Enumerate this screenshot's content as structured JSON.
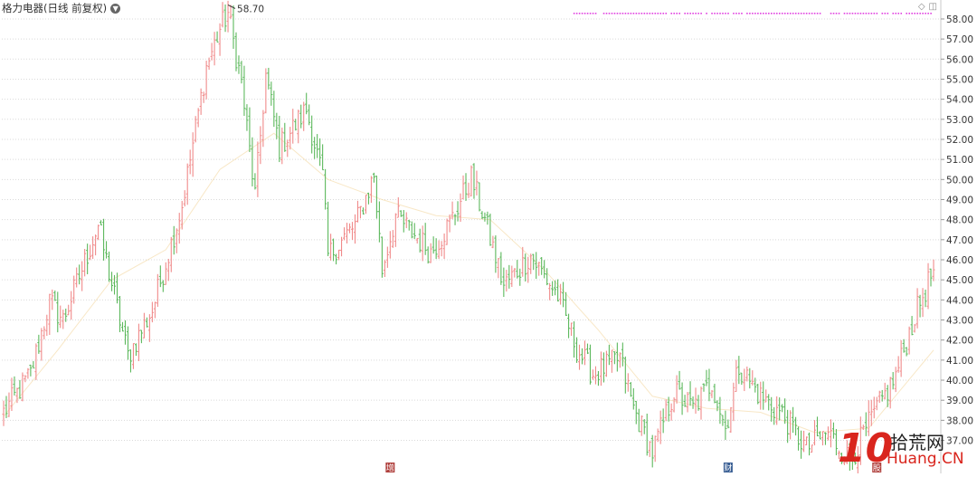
{
  "header": {
    "title": "格力电器(日线 前复权)",
    "dropdown_icon": "chevron-down-icon"
  },
  "colors": {
    "up": "#f08a8a",
    "down": "#5cb85c",
    "grid": "#d9d9d9",
    "indicator_dots": "#e040e0",
    "event_red": "#b0413e",
    "event_blue": "#3a5f94"
  },
  "chart_data": {
    "type": "ohlc",
    "ylim": [
      35.4,
      58.9
    ],
    "y_ticks": [
      "37.00",
      "38.00",
      "39.00",
      "40.00",
      "41.00",
      "42.00",
      "43.00",
      "44.00",
      "45.00",
      "46.00",
      "47.00",
      "48.00",
      "49.00",
      "50.00",
      "51.00",
      "52.00",
      "53.00",
      "54.00",
      "55.00",
      "56.00",
      "57.00",
      "58.00"
    ],
    "y_tick_values": [
      37,
      38,
      39,
      40,
      41,
      42,
      43,
      44,
      45,
      46,
      47,
      48,
      49,
      50,
      51,
      52,
      53,
      54,
      55,
      56,
      57,
      58
    ],
    "grid": true,
    "max_label": "58.70",
    "events": [
      {
        "label": "增",
        "bar": 143,
        "color": "red"
      },
      {
        "label": "财",
        "bar": 268,
        "color": "blue"
      },
      {
        "label": "股",
        "bar": 323,
        "color": "red"
      }
    ],
    "anchors": [
      [
        0,
        38.4
      ],
      [
        10,
        40.3
      ],
      [
        17,
        43.9
      ],
      [
        22,
        43.0
      ],
      [
        35,
        47.7
      ],
      [
        40,
        44.8
      ],
      [
        46,
        41.2
      ],
      [
        55,
        43.5
      ],
      [
        66,
        48.7
      ],
      [
        75,
        55.6
      ],
      [
        80,
        57.5
      ],
      [
        83,
        58.3
      ],
      [
        88,
        54.8
      ],
      [
        93,
        49.2
      ],
      [
        97,
        55.2
      ],
      [
        102,
        51.6
      ],
      [
        112,
        53.5
      ],
      [
        118,
        50.1
      ],
      [
        120,
        46.2
      ],
      [
        130,
        47.7
      ],
      [
        137,
        50.2
      ],
      [
        140,
        45.5
      ],
      [
        145,
        48.2
      ],
      [
        158,
        46.4
      ],
      [
        165,
        47.8
      ],
      [
        173,
        50.1
      ],
      [
        178,
        48.0
      ],
      [
        185,
        44.7
      ],
      [
        195,
        46.2
      ],
      [
        205,
        44.2
      ],
      [
        212,
        41.6
      ],
      [
        218,
        40.3
      ],
      [
        228,
        41.1
      ],
      [
        233,
        38.6
      ],
      [
        240,
        36.4
      ],
      [
        248,
        39.4
      ],
      [
        255,
        38.6
      ],
      [
        262,
        39.9
      ],
      [
        267,
        37.6
      ],
      [
        272,
        40.7
      ],
      [
        280,
        39.2
      ],
      [
        288,
        38.3
      ],
      [
        297,
        36.6
      ],
      [
        305,
        37.4
      ],
      [
        313,
        36.0
      ],
      [
        322,
        38.3
      ],
      [
        330,
        40.2
      ],
      [
        337,
        43.2
      ],
      [
        344,
        45.5
      ]
    ],
    "ma": [
      [
        0,
        38.2
      ],
      [
        20,
        41.5
      ],
      [
        40,
        45.0
      ],
      [
        60,
        46.5
      ],
      [
        80,
        50.5
      ],
      [
        100,
        52.3
      ],
      [
        120,
        50.0
      ],
      [
        140,
        49.0
      ],
      [
        160,
        48.2
      ],
      [
        180,
        48.0
      ],
      [
        200,
        45.5
      ],
      [
        220,
        42.5
      ],
      [
        240,
        39.2
      ],
      [
        260,
        38.6
      ],
      [
        280,
        38.4
      ],
      [
        300,
        37.4
      ],
      [
        320,
        37.6
      ],
      [
        344,
        41.5
      ]
    ]
  }
}
